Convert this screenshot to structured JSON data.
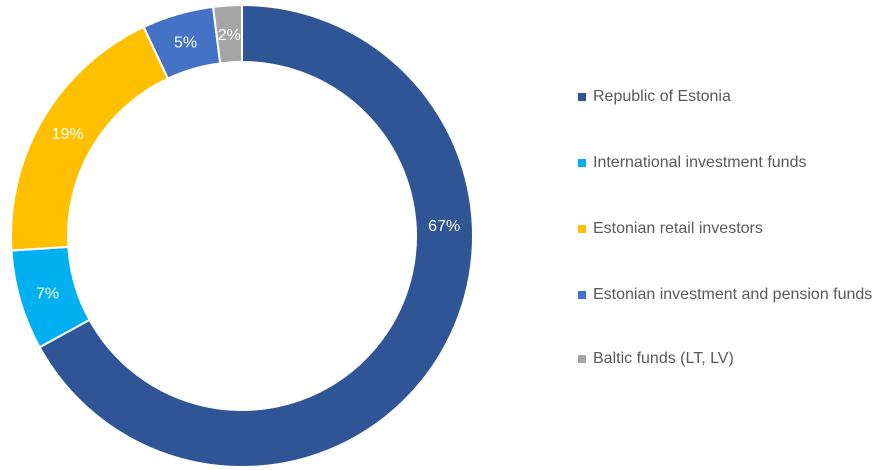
{
  "chart_data": {
    "type": "pie",
    "variant": "donut",
    "title": "",
    "categories": [
      "Republic of Estonia",
      "International investment funds",
      "Estonian retail investors",
      "Estonian investment and pension funds",
      "Baltic funds (LT, LV)"
    ],
    "values": [
      67,
      7,
      19,
      5,
      2
    ],
    "value_labels": [
      "67%",
      "7%",
      "19%",
      "5%",
      "2%"
    ],
    "colors": [
      "#2F5597",
      "#00B0F0",
      "#FFC000",
      "#4472C4",
      "#A5A5A5"
    ],
    "legend_position": "right",
    "start_angle_deg": 0,
    "direction": "clockwise"
  }
}
